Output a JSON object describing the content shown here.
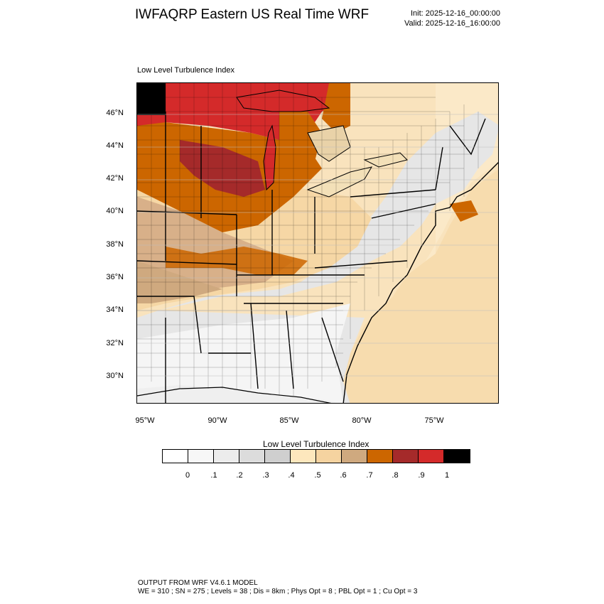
{
  "title": "IWFAQRP Eastern US Real Time WRF",
  "init": "Init: 2025-12-16_00:00:00",
  "valid": "Valid: 2025-12-16_16:00:00",
  "panel_title": "Low Level Turbulence Index",
  "lat_labels": [
    "46°N",
    "44°N",
    "42°N",
    "40°N",
    "38°N",
    "36°N",
    "34°N",
    "32°N",
    "30°N"
  ],
  "lon_labels": [
    "95°W",
    "90°W",
    "85°W",
    "80°W",
    "75°W"
  ],
  "colorbar": {
    "title": "Low Level Turbulence Index",
    "ticks": [
      "0",
      ".1",
      ".2",
      ".3",
      ".4",
      ".5",
      ".6",
      ".7",
      ".8",
      ".9",
      "1"
    ],
    "colors": [
      "#ffffff",
      "#f7f7f7",
      "#ececec",
      "#dcdcdc",
      "#cfcfcf",
      "#fde7bd",
      "#f5d3a0",
      "#cfa97f",
      "#cc6600",
      "#a52a2a",
      "#d42a2a",
      "#000000"
    ]
  },
  "footer": {
    "line1": "OUTPUT FROM WRF V4.6.1 MODEL",
    "line2": "WE = 310 ; SN = 275 ; Levels = 38 ; Dis = 8km ; Phys Opt = 8 ; PBL Opt = 1 ; Cu Opt = 3"
  }
}
